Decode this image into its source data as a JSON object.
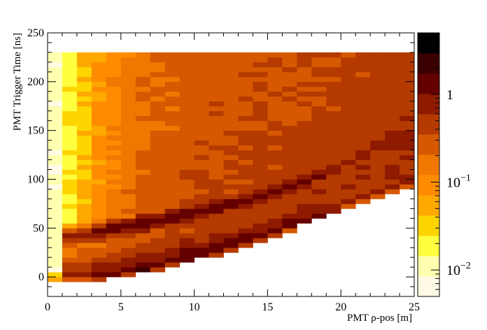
{
  "chart_data": {
    "type": "heatmap",
    "title": "",
    "xlabel": "PMT ρ-pos [m]",
    "ylabel": "PMT Trigger Time [ns]",
    "xlim": [
      0,
      25
    ],
    "ylim": [
      -20,
      250
    ],
    "x_ticks": [
      "0",
      "5",
      "10",
      "15",
      "20",
      "25"
    ],
    "y_ticks": [
      "0",
      "50",
      "100",
      "150",
      "200",
      "250"
    ],
    "x_tick_values": [
      0,
      5,
      10,
      15,
      20,
      25
    ],
    "y_tick_values": [
      0,
      50,
      100,
      150,
      200,
      250
    ],
    "z_scale": "log",
    "z_range": [
      0.005,
      5
    ],
    "colorbar_ticks": [
      {
        "value": 1,
        "base": "1",
        "exp": ""
      },
      {
        "value": 0.1,
        "base": "10",
        "exp": "−1"
      },
      {
        "value": 0.01,
        "base": "10",
        "exp": "−2"
      }
    ],
    "palette": [
      "#fffbe6",
      "#ffffb0",
      "#ffff40",
      "#ffd500",
      "#ffa800",
      "#ff8c00",
      "#f07800",
      "#d65800",
      "#b53a00",
      "#8e1a00",
      "#650000",
      "#3a0000",
      "#000000"
    ],
    "bin_width_x_m": 1,
    "time_range_ns": [
      -5,
      230
    ],
    "lower_edge_ns": [
      -4,
      -4,
      -4,
      -3,
      -1,
      1,
      4,
      7,
      10,
      14,
      18,
      22,
      27,
      32,
      37,
      42,
      47,
      53,
      58,
      64,
      70,
      75,
      81,
      86,
      92
    ],
    "band_center_ns": [
      35,
      40,
      43,
      46,
      49,
      52,
      55,
      58,
      61,
      64,
      67,
      71,
      75,
      79,
      83,
      87,
      92,
      97,
      103,
      109,
      117,
      125,
      133,
      140,
      146
    ],
    "band_peak_z": [
      0.5,
      0.9,
      1.2,
      1.4,
      1.6,
      1.8,
      2.0,
      2.0,
      2.0,
      2.0,
      2.0,
      1.9,
      1.8,
      1.7,
      1.7,
      1.6,
      1.6,
      1.5,
      1.5,
      1.4,
      1.3,
      1.3,
      1.2,
      1.2,
      1.1
    ],
    "plateau_z": [
      0.012,
      0.03,
      0.05,
      0.08,
      0.12,
      0.15,
      0.18,
      0.2,
      0.22,
      0.24,
      0.25,
      0.27,
      0.28,
      0.29,
      0.3,
      0.31,
      0.32,
      0.33,
      0.34,
      0.35,
      0.35,
      0.36,
      0.36,
      0.36,
      0.37
    ]
  }
}
